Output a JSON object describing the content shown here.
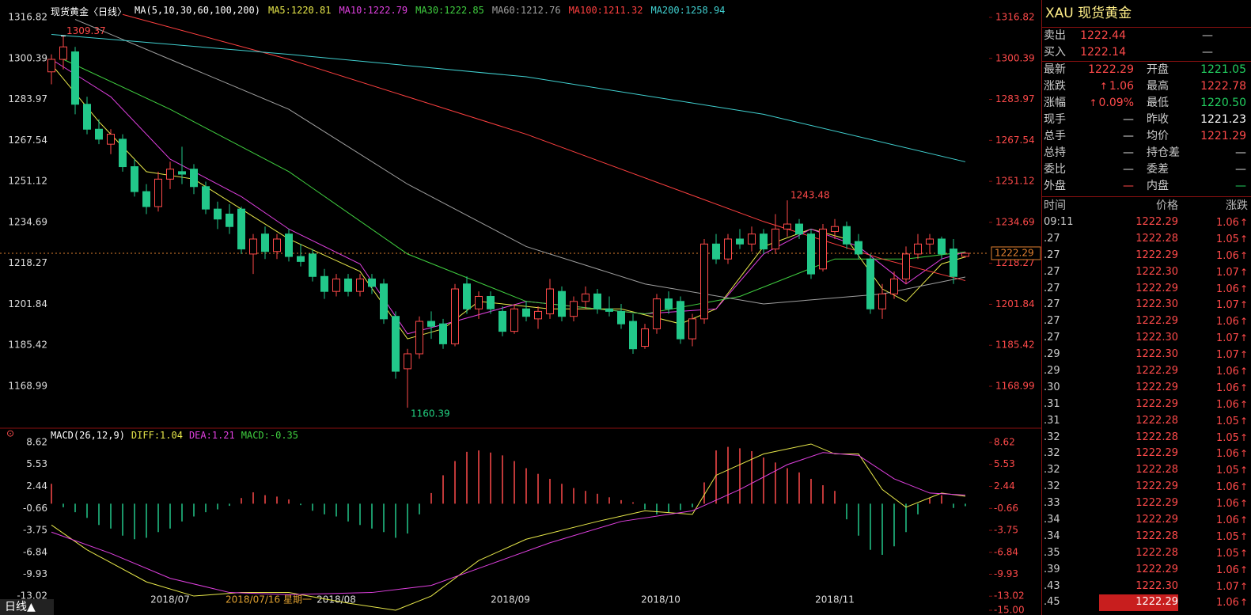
{
  "header": {
    "symbol": "现货黄金〈日线〉",
    "ma_params": "MA(5,10,30,60,100,200)",
    "ma_labels": [
      {
        "text": "MA5:1220.81",
        "color": "#e8e84a"
      },
      {
        "text": "MA10:1222.79",
        "color": "#e040e0"
      },
      {
        "text": "MA30:1222.85",
        "color": "#40d040"
      },
      {
        "text": "MA60:1212.76",
        "color": "#a0a0a0"
      },
      {
        "text": "MA100:1211.32",
        "color": "#ff4040"
      },
      {
        "text": "MA200:1258.94",
        "color": "#40d0d0"
      }
    ]
  },
  "price_chart": {
    "type": "candlestick",
    "ylim": [
      1152.5,
      1322.2
    ],
    "yticks": [
      1316.82,
      1300.39,
      1283.97,
      1267.54,
      1251.12,
      1234.69,
      1218.27,
      1201.84,
      1185.42,
      1168.99
    ],
    "up_color": "#ff4a4a",
    "down_color": "#22c88a",
    "last_price": 1222.29,
    "candles": [
      [
        1295,
        1302,
        1290,
        1300
      ],
      [
        1300,
        1309.37,
        1296,
        1305
      ],
      [
        1303,
        1305,
        1278,
        1282
      ],
      [
        1282,
        1285,
        1270,
        1272
      ],
      [
        1272,
        1276,
        1266,
        1268
      ],
      [
        1266,
        1272,
        1262,
        1270
      ],
      [
        1268,
        1270,
        1255,
        1257
      ],
      [
        1257,
        1260,
        1245,
        1247
      ],
      [
        1247,
        1250,
        1238,
        1241
      ],
      [
        1241,
        1255,
        1239,
        1252
      ],
      [
        1252,
        1259,
        1248,
        1256
      ],
      [
        1255,
        1265,
        1250,
        1254
      ],
      [
        1256,
        1258,
        1246,
        1249
      ],
      [
        1249,
        1251,
        1238,
        1240
      ],
      [
        1240,
        1243,
        1232,
        1236
      ],
      [
        1238,
        1242,
        1230,
        1233
      ],
      [
        1240,
        1241,
        1222,
        1224
      ],
      [
        1222,
        1230,
        1214,
        1228
      ],
      [
        1230,
        1233,
        1220,
        1223
      ],
      [
        1223,
        1230,
        1220,
        1228
      ],
      [
        1230,
        1232,
        1219,
        1221
      ],
      [
        1221,
        1226,
        1217,
        1219
      ],
      [
        1222,
        1224,
        1211,
        1213
      ],
      [
        1213,
        1216,
        1204,
        1207
      ],
      [
        1207,
        1214,
        1205,
        1212
      ],
      [
        1212,
        1214,
        1205,
        1207
      ],
      [
        1207,
        1214,
        1205,
        1212
      ],
      [
        1212,
        1214,
        1206,
        1209
      ],
      [
        1210,
        1212,
        1194,
        1196
      ],
      [
        1197,
        1199,
        1172,
        1175
      ],
      [
        1176,
        1184,
        1160.39,
        1182
      ],
      [
        1182,
        1197,
        1180,
        1195
      ],
      [
        1195,
        1199,
        1188,
        1193
      ],
      [
        1194,
        1196,
        1184,
        1186
      ],
      [
        1186,
        1210,
        1185,
        1208
      ],
      [
        1210,
        1213,
        1198,
        1200
      ],
      [
        1200,
        1207,
        1196,
        1205
      ],
      [
        1205,
        1207,
        1198,
        1200
      ],
      [
        1199,
        1201,
        1189,
        1191
      ],
      [
        1191,
        1202,
        1190,
        1200
      ],
      [
        1200,
        1203,
        1195,
        1197
      ],
      [
        1196,
        1201,
        1192,
        1199
      ],
      [
        1198,
        1212,
        1196,
        1208
      ],
      [
        1207,
        1209,
        1195,
        1197
      ],
      [
        1197,
        1205,
        1195,
        1203
      ],
      [
        1203,
        1209,
        1200,
        1206
      ],
      [
        1206,
        1208,
        1198,
        1200
      ],
      [
        1200,
        1205,
        1197,
        1199
      ],
      [
        1199,
        1202,
        1192,
        1194
      ],
      [
        1195,
        1198,
        1182,
        1184
      ],
      [
        1185,
        1194,
        1184,
        1192
      ],
      [
        1192,
        1206,
        1190,
        1204
      ],
      [
        1204,
        1207,
        1198,
        1200
      ],
      [
        1203,
        1205,
        1186,
        1188
      ],
      [
        1188,
        1198,
        1185,
        1196
      ],
      [
        1196,
        1228,
        1194,
        1226
      ],
      [
        1226,
        1230,
        1218,
        1220
      ],
      [
        1220,
        1230,
        1218,
        1228
      ],
      [
        1228,
        1232,
        1224,
        1226
      ],
      [
        1226,
        1233,
        1223,
        1230
      ],
      [
        1230,
        1232,
        1222,
        1224
      ],
      [
        1224,
        1238,
        1222,
        1232
      ],
      [
        1232,
        1243.48,
        1229,
        1234
      ],
      [
        1234,
        1236,
        1228,
        1230
      ],
      [
        1230,
        1232,
        1212,
        1214
      ],
      [
        1216,
        1234,
        1215,
        1232
      ],
      [
        1231,
        1236,
        1228,
        1233
      ],
      [
        1233,
        1235,
        1224,
        1226
      ],
      [
        1227,
        1230,
        1220,
        1222
      ],
      [
        1220,
        1222,
        1198,
        1200
      ],
      [
        1200,
        1210,
        1196,
        1206
      ],
      [
        1206,
        1215,
        1204,
        1212
      ],
      [
        1212,
        1225,
        1210,
        1222
      ],
      [
        1222,
        1230,
        1220,
        1226
      ],
      [
        1226,
        1230,
        1222,
        1228
      ],
      [
        1228,
        1229,
        1220,
        1222
      ],
      [
        1224,
        1228,
        1210,
        1213
      ],
      [
        1221.05,
        1222.78,
        1220.5,
        1222.29
      ]
    ],
    "ma_lines": [
      {
        "color": "#e8e84a",
        "x": [
          0,
          4,
          8,
          12,
          16,
          20,
          26,
          30,
          33,
          36,
          42,
          48,
          53,
          56,
          60,
          64,
          67,
          70,
          72,
          75,
          77
        ],
        "values": [
          1298,
          1275,
          1255,
          1252,
          1240,
          1228,
          1215,
          1188,
          1192,
          1203,
          1200,
          1200,
          1194,
          1200,
          1225,
          1232,
          1228,
          1208,
          1203,
          1218,
          1220.81
        ]
      },
      {
        "color": "#e040e0",
        "x": [
          0,
          5,
          10,
          16,
          20,
          26,
          30,
          34,
          40,
          50,
          56,
          60,
          64,
          68,
          72,
          75,
          77
        ],
        "values": [
          1300,
          1285,
          1260,
          1245,
          1232,
          1218,
          1190,
          1195,
          1203,
          1198,
          1200,
          1222,
          1232,
          1225,
          1210,
          1220,
          1222.79
        ]
      },
      {
        "color": "#40d040",
        "x": [
          1,
          10,
          20,
          30,
          40,
          50,
          58,
          66,
          72,
          77
        ],
        "values": [
          1300,
          1280,
          1255,
          1222,
          1203,
          1198,
          1205,
          1220,
          1220,
          1222.85
        ]
      },
      {
        "color": "#a0a0a0",
        "x": [
          2,
          10,
          20,
          30,
          40,
          50,
          60,
          70,
          77
        ],
        "values": [
          1316,
          1300,
          1280,
          1250,
          1225,
          1210,
          1202,
          1206,
          1212.76
        ]
      },
      {
        "color": "#ff4040",
        "x": [
          6,
          20,
          40,
          60,
          70,
          77
        ],
        "values": [
          1318,
          1300,
          1270,
          1235,
          1220,
          1211.32
        ]
      },
      {
        "color": "#40d0d0",
        "x": [
          0,
          20,
          40,
          60,
          77
        ],
        "values": [
          1310,
          1302,
          1293,
          1278,
          1258.94
        ]
      }
    ],
    "date_labels": [
      "2018/07",
      "2018/08",
      "2018/09",
      "2018/10",
      "2018/11"
    ],
    "cursor_label": "2018/07/16 星期一"
  },
  "macd": {
    "title": "MACD(26,12,9)",
    "diff_label": "DIFF:1.04",
    "dea_label": "DEA:1.21",
    "macd_label": "MACD:-0.35",
    "ylim": [
      -15,
      8.62
    ],
    "yticks": [
      8.62,
      5.53,
      2.44,
      -0.66,
      -3.75,
      -6.84,
      -9.93,
      -13.02,
      {
        "value": -15,
        "label": "-15.00"
      }
    ],
    "histogram": [
      2.8,
      -0.5,
      -1.2,
      -2,
      -3,
      -3.5,
      -4.5,
      -5,
      -4.8,
      -4,
      -3.5,
      -2.5,
      -1.8,
      -1.2,
      -0.8,
      -0.3,
      0.8,
      1.6,
      1.2,
      1,
      0.6,
      -0.2,
      -1,
      -1.5,
      -1.8,
      -2.5,
      -3,
      -3.5,
      -4,
      -4.8,
      -4.2,
      -1.5,
      1.5,
      4,
      6,
      7.3,
      7.5,
      7.2,
      6.8,
      6,
      5,
      4.2,
      3.5,
      2.8,
      2.2,
      1.8,
      1.4,
      0.9,
      0.5,
      0.2,
      -0.8,
      -1.5,
      -1.2,
      -0.9,
      -0.5,
      3,
      7.5,
      8,
      7.8,
      7.4,
      6.5,
      5.8,
      5,
      4.4,
      3.5,
      2.6,
      1.8,
      -2.2,
      -4.5,
      -6.5,
      -7.2,
      -6,
      -4,
      -1.5,
      0.8,
      1.2,
      -0.6,
      -0.35
    ],
    "diff": {
      "color": "#e8e84a",
      "x": [
        0,
        3,
        8,
        12,
        16,
        20,
        25,
        29,
        32,
        36,
        40,
        46,
        50,
        54,
        56,
        60,
        64,
        66,
        68,
        70,
        72,
        75,
        77
      ],
      "values": [
        -3,
        -6.5,
        -11,
        -13,
        -12.5,
        -12.5,
        -14,
        -15,
        -13,
        -8,
        -5,
        -2.5,
        -1,
        -1.5,
        4,
        7,
        8.4,
        7,
        7,
        2,
        -0.5,
        1.5,
        1.04
      ]
    },
    "dea": {
      "color": "#e040e0",
      "x": [
        0,
        5,
        10,
        15,
        20,
        27,
        32,
        37,
        42,
        48,
        54,
        58,
        62,
        65,
        68,
        71,
        74,
        77
      ],
      "values": [
        -4,
        -7,
        -10.5,
        -12.5,
        -12.8,
        -12.5,
        -11.5,
        -8.5,
        -5.5,
        -2.5,
        -1,
        2,
        5.5,
        7.2,
        6.8,
        3.5,
        1.5,
        1.21
      ]
    }
  },
  "quote": {
    "title": "XAU 现货黄金",
    "rows": [
      [
        "卖出",
        "1222.44",
        "—"
      ],
      [
        "买入",
        "1222.14",
        "—"
      ]
    ],
    "grid": [
      [
        "最新",
        "1222.29",
        "开盘",
        "1221.05"
      ],
      [
        "涨跌",
        "1.06",
        "最高",
        "1222.78"
      ],
      [
        "涨幅",
        "0.09%",
        "最低",
        "1220.50"
      ],
      [
        "现手",
        "—",
        "昨收",
        "1221.23"
      ],
      [
        "总手",
        "—",
        "均价",
        "1221.29"
      ],
      [
        "总持",
        "—",
        "持仓差",
        "—"
      ],
      [
        "委比",
        "—",
        "委差",
        "—"
      ],
      [
        "外盘",
        "—",
        "内盘",
        "—"
      ]
    ],
    "grid_colors": [
      [
        "#ff4a4a",
        "#22d060"
      ],
      [
        "#ff4a4a",
        "#ff4a4a"
      ],
      [
        "#ff4a4a",
        "#22d060"
      ],
      [
        "#ddd",
        "#fff"
      ],
      [
        "#ddd",
        "#ff4a4a"
      ],
      [
        "#ddd",
        "#ddd"
      ],
      [
        "#ddd",
        "#ddd"
      ],
      [
        "#ff4a4a",
        "#22d060"
      ]
    ]
  },
  "tick_table": {
    "headers": [
      "时间",
      "价格",
      "涨跌"
    ],
    "rows": [
      [
        "09:11",
        "1222.29",
        "1.06"
      ],
      [
        ".27",
        "1222.28",
        "1.05"
      ],
      [
        ".27",
        "1222.29",
        "1.06"
      ],
      [
        ".27",
        "1222.30",
        "1.07"
      ],
      [
        ".27",
        "1222.29",
        "1.06"
      ],
      [
        ".27",
        "1222.30",
        "1.07"
      ],
      [
        ".27",
        "1222.29",
        "1.06"
      ],
      [
        ".27",
        "1222.30",
        "1.07"
      ],
      [
        ".29",
        "1222.30",
        "1.07"
      ],
      [
        ".29",
        "1222.29",
        "1.06"
      ],
      [
        ".30",
        "1222.29",
        "1.06"
      ],
      [
        ".31",
        "1222.29",
        "1.06"
      ],
      [
        ".31",
        "1222.28",
        "1.05"
      ],
      [
        ".32",
        "1222.28",
        "1.05"
      ],
      [
        ".32",
        "1222.29",
        "1.06"
      ],
      [
        ".32",
        "1222.28",
        "1.05"
      ],
      [
        ".32",
        "1222.29",
        "1.06"
      ],
      [
        ".33",
        "1222.29",
        "1.06"
      ],
      [
        ".34",
        "1222.29",
        "1.06"
      ],
      [
        ".34",
        "1222.28",
        "1.05"
      ],
      [
        ".35",
        "1222.28",
        "1.05"
      ],
      [
        ".39",
        "1222.29",
        "1.06"
      ],
      [
        ".43",
        "1222.30",
        "1.07"
      ],
      [
        ".45",
        "1222.29",
        "1.06"
      ]
    ]
  },
  "footer": {
    "period": "日线▲"
  }
}
